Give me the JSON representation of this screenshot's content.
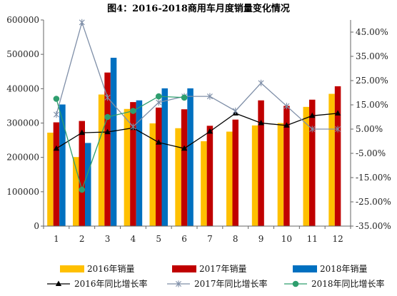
{
  "chart_data": {
    "type": "bar",
    "title": "图4：2016-2018商用车月度销量变化情况",
    "categories": [
      "1",
      "2",
      "3",
      "4",
      "5",
      "6",
      "7",
      "8",
      "9",
      "10",
      "11",
      "12"
    ],
    "y_left": {
      "min": 0,
      "max": 600000,
      "ticks": [
        "0",
        "100000",
        "200000",
        "300000",
        "400000",
        "500000",
        "600000"
      ]
    },
    "y_right": {
      "min": -35,
      "max": 50,
      "ticks": [
        "-35.00%",
        "-25.00%",
        "-15.00%",
        "-5.00%",
        "5.00%",
        "15.00%",
        "25.00%",
        "35.00%",
        "45.00%"
      ]
    },
    "grid": false,
    "legend_position": "bottom",
    "bar_series": [
      {
        "name": "2016年销量",
        "color": "#FFC000",
        "values": [
          272000,
          201000,
          383000,
          341000,
          299000,
          285000,
          247000,
          275000,
          293000,
          300000,
          347000,
          385000
        ]
      },
      {
        "name": "2017年销量",
        "color": "#C00000",
        "values": [
          302000,
          306000,
          447000,
          361000,
          345000,
          340000,
          292000,
          310000,
          366000,
          350000,
          368000,
          407000
        ]
      },
      {
        "name": "2018年销量",
        "color": "#0070C0",
        "values": [
          354000,
          242000,
          490000,
          366000,
          401000,
          401000,
          null,
          null,
          null,
          null,
          null,
          null
        ]
      }
    ],
    "line_series": [
      {
        "name": "2016年同比增长率",
        "color": "#000000",
        "marker": "triangle",
        "values": [
          -3.0,
          3.5,
          3.8,
          5.5,
          -0.5,
          -3.0,
          4.0,
          11.5,
          7.5,
          6.5,
          10.5,
          11.5
        ]
      },
      {
        "name": "2017年同比增长率",
        "color": "#7F8FA8",
        "marker": "star",
        "values": [
          11.0,
          49.0,
          18.0,
          6.0,
          16.0,
          18.5,
          18.5,
          12.5,
          24.0,
          14.5,
          5.0,
          5.0
        ]
      },
      {
        "name": "2018年同比增长率",
        "color": "#2E9E6E",
        "marker": "circle",
        "values": [
          17.5,
          -20.0,
          10.0,
          12.5,
          18.5,
          18.0,
          null,
          null,
          null,
          null,
          null,
          null
        ]
      }
    ]
  }
}
